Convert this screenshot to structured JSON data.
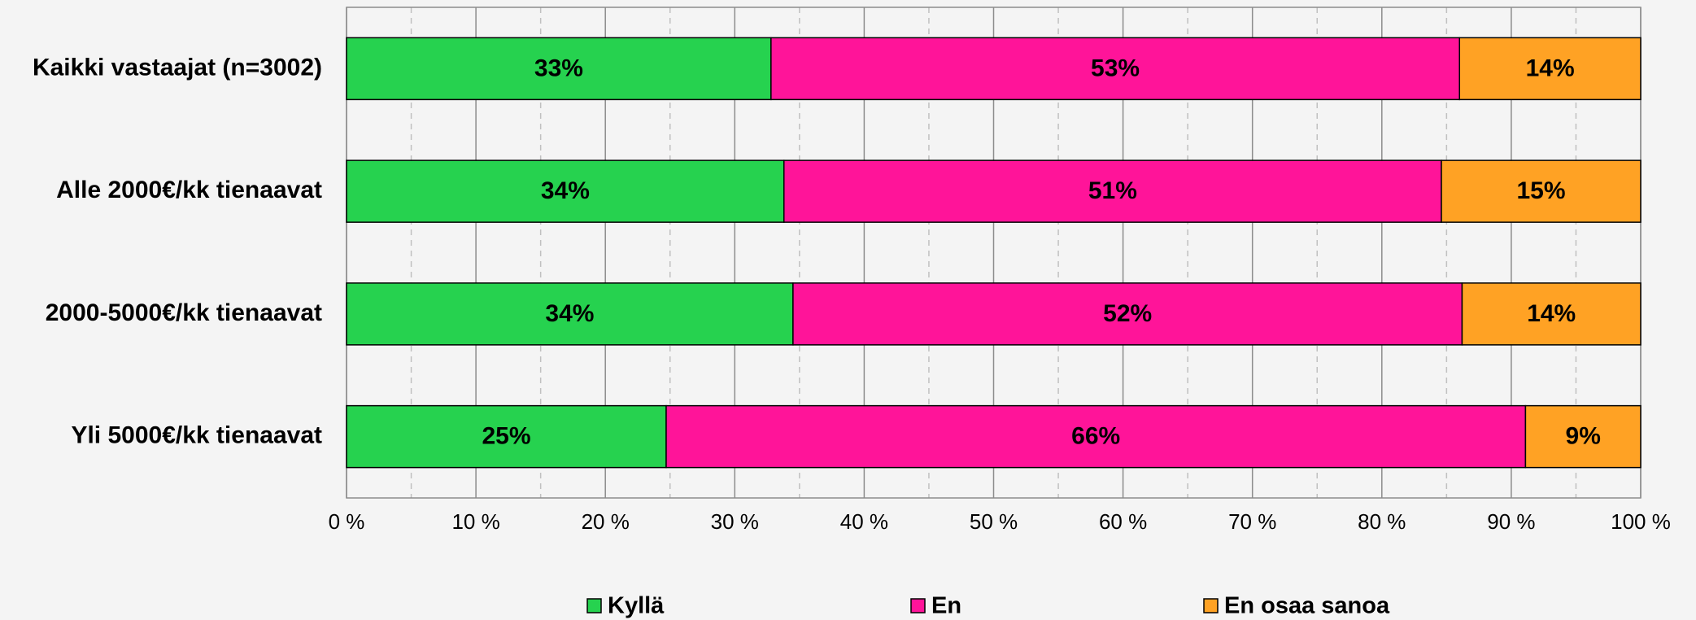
{
  "chart_data": {
    "type": "stacked_barh",
    "categories": [
      "Kaikki vastaajat (n=3002)",
      "Alle 2000€/kk tienaavat",
      "2000-5000€/kk tienaavat",
      "Yli 5000€/kk tienaavat"
    ],
    "series": [
      {
        "name": "Kyllä",
        "color": "#26d24f",
        "values": [
          32.8,
          33.8,
          34.5,
          24.7
        ],
        "value_labels": [
          "33%",
          "34%",
          "34%",
          "25%"
        ]
      },
      {
        "name": "En",
        "color": "#ff1499",
        "values": [
          53.2,
          50.8,
          51.7,
          66.4
        ],
        "value_labels": [
          "53%",
          "51%",
          "52%",
          "66%"
        ]
      },
      {
        "name": "En osaa sanoa",
        "color": "#ffa224",
        "values": [
          14,
          15.4,
          13.8,
          8.9
        ],
        "value_labels": [
          "14%",
          "15%",
          "14%",
          "9%"
        ]
      }
    ],
    "xlim": [
      0,
      100
    ],
    "xticks": [
      {
        "value": 0,
        "label": "0 %"
      },
      {
        "value": 10,
        "label": "10 %"
      },
      {
        "value": 20,
        "label": "20 %"
      },
      {
        "value": 30,
        "label": "30 %"
      },
      {
        "value": 40,
        "label": "40 %"
      },
      {
        "value": 50,
        "label": "50 %"
      },
      {
        "value": 60,
        "label": "60 %"
      },
      {
        "value": 70,
        "label": "70 %"
      },
      {
        "value": 80,
        "label": "80 %"
      },
      {
        "value": 90,
        "label": "90 %"
      },
      {
        "value": 100,
        "label": "100 %"
      }
    ],
    "minor_xticks": [
      5,
      15,
      25,
      35,
      45,
      55,
      65,
      75,
      85,
      95
    ],
    "grid": true,
    "legend": "bottom"
  }
}
